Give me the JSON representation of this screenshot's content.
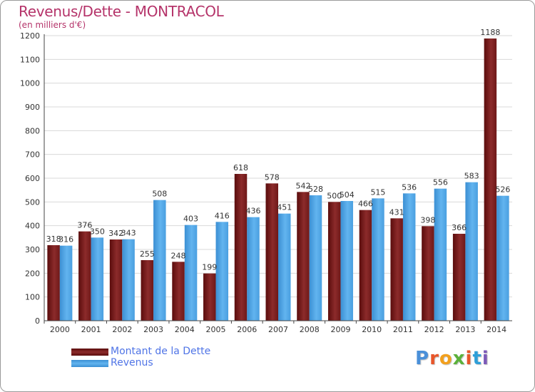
{
  "title": "Revenus/Dette - MONTRACOL",
  "subtitle": "(en milliers d'€)",
  "logo": {
    "letters": [
      "P",
      "r",
      "o",
      "x",
      "i",
      "t",
      "i"
    ],
    "colors": [
      "#4a90d9",
      "#e8562a",
      "#f2a01e",
      "#5bb13b",
      "#e8562a",
      "#2e9fd8",
      "#7c5ab8"
    ]
  },
  "chart_data": {
    "type": "bar",
    "categories": [
      "2000",
      "2001",
      "2002",
      "2003",
      "2004",
      "2005",
      "2006",
      "2007",
      "2008",
      "2009",
      "2010",
      "2011",
      "2012",
      "2013",
      "2014"
    ],
    "series": [
      {
        "name": "Montant de la Dette",
        "color": "#7a1f1f",
        "values": [
          318,
          376,
          342,
          255,
          248,
          199,
          618,
          578,
          542,
          500,
          466,
          431,
          398,
          366,
          1188
        ],
        "labels": [
          "318",
          "376",
          "342",
          "255",
          "248",
          "199",
          "618",
          "578",
          "542",
          "500",
          "466",
          "431",
          "398",
          "366",
          "1188"
        ]
      },
      {
        "name": "Revenus",
        "color": "#4fa3e3",
        "values": [
          316,
          350,
          343,
          508,
          403,
          416,
          436,
          451,
          528,
          504,
          515,
          536,
          556,
          583,
          526
        ],
        "labels": [
          "316",
          "350",
          "343",
          "508",
          "403",
          "416",
          "436",
          "451",
          "528",
          "504",
          "515",
          "536",
          "556",
          "583",
          "526"
        ]
      }
    ],
    "ylim": [
      0,
      1200
    ],
    "yticks": [
      "0",
      "100",
      "200",
      "300",
      "400",
      "500",
      "600",
      "700",
      "800",
      "900",
      "1000",
      "1100",
      "1200"
    ],
    "grid": true,
    "legend_position": "bottom-left"
  }
}
